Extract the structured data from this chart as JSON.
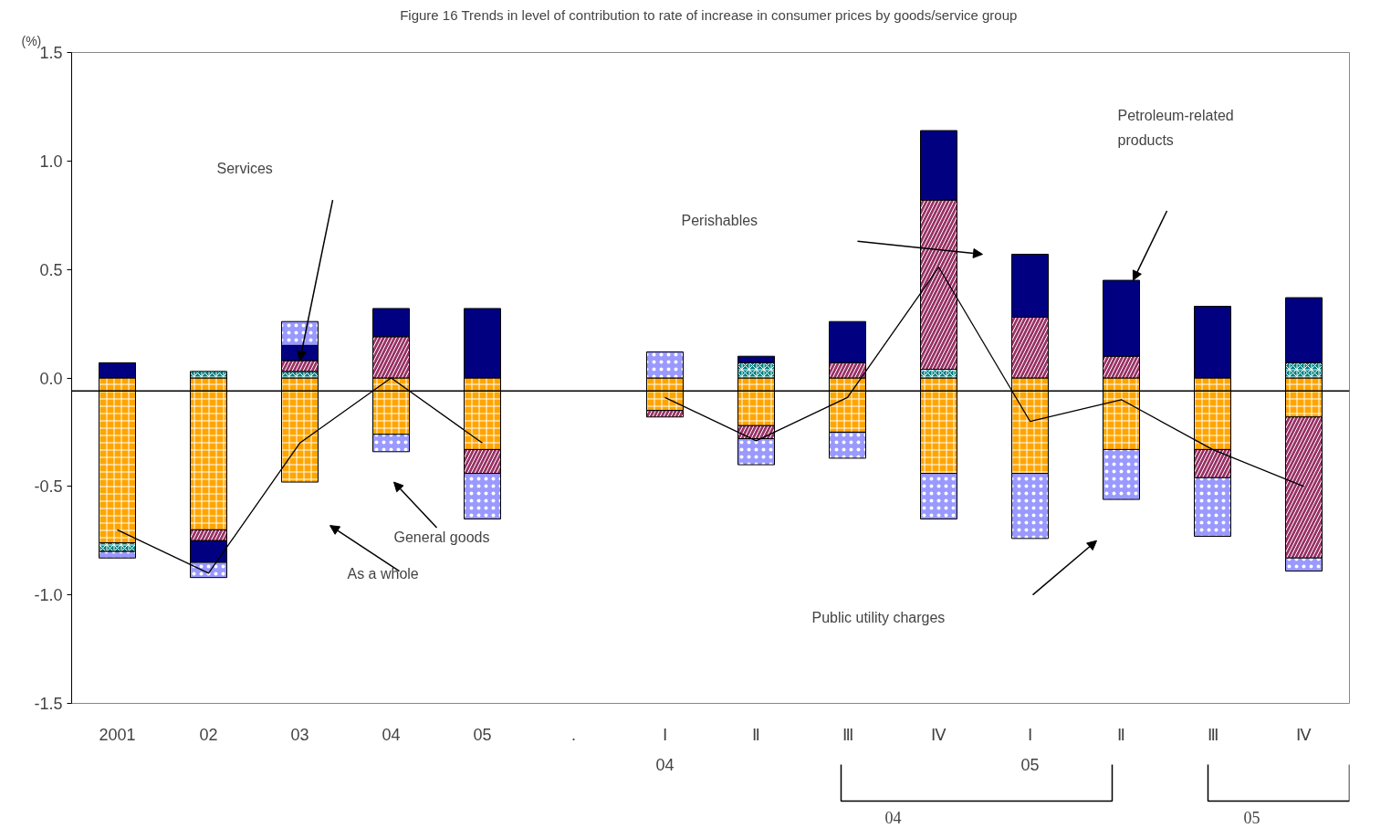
{
  "chart_data": {
    "type": "bar",
    "stacked": true,
    "title": "Figure 16  Trends in level of contribution to rate of increase in consumer prices by goods/service group",
    "ylabel": "(%)",
    "categories": [
      "2001",
      "02",
      "03",
      "04",
      "05",
      ".",
      "Ⅰ",
      "Ⅱ",
      "Ⅲ",
      "Ⅳ",
      "Ⅰ",
      "Ⅱ",
      "Ⅲ",
      "Ⅳ"
    ],
    "ylim": [
      -1.5,
      1.5
    ],
    "yticks": [
      {
        "value": -1.5,
        "label": "-1.5"
      },
      {
        "value": -1,
        "label": "-1.0"
      },
      {
        "value": -0.5,
        "label": "-0.5"
      },
      {
        "value": 0,
        "label": "0.0"
      },
      {
        "value": 0.5,
        "label": "0.5"
      },
      {
        "value": 1,
        "label": "1.0"
      },
      {
        "value": 1.5,
        "label": "1.5"
      }
    ],
    "grid": false,
    "series": [
      {
        "color": "#ffa500",
        "values": [
          -0.76,
          -0.7,
          -0.48,
          -0.26,
          -0.33,
          null,
          -0.15,
          -0.22,
          -0.25,
          -0.44,
          -0.44,
          -0.33,
          -0.33,
          -0.18
        ]
      },
      {
        "color": "#008080",
        "values": [
          -0.04,
          0.03,
          0.03,
          null,
          null,
          null,
          null,
          0.07,
          null,
          0.04,
          null,
          null,
          null,
          0.07
        ]
      },
      {
        "color": "#993366",
        "values": [
          null,
          -0.05,
          0.05,
          0.19,
          -0.11,
          null,
          -0.03,
          -0.06,
          0.07,
          0.78,
          0.28,
          0.1,
          -0.13,
          -0.65
        ]
      },
      {
        "color": "#000080",
        "values": [
          0.07,
          -0.1,
          0.07,
          0.13,
          0.32,
          null,
          null,
          0.03,
          0.19,
          0.32,
          0.29,
          0.35,
          0.33,
          0.3
        ]
      },
      {
        "color": "#9999ff",
        "values": [
          -0.03,
          -0.07,
          0.11,
          -0.08,
          -0.21,
          null,
          0.12,
          -0.12,
          -0.12,
          -0.21,
          -0.3,
          -0.23,
          -0.27,
          -0.06
        ]
      },
      {
        "type": "line",
        "color": "#000000",
        "values": [
          -0.7,
          -0.9,
          -0.3,
          0.0,
          -0.3,
          null,
          -0.09,
          -0.29,
          -0.09,
          0.51,
          -0.2,
          -0.1,
          -0.33,
          -0.5
        ]
      }
    ],
    "ref_lines": [
      {
        "axis": "y",
        "value": -0.06,
        "color": "#000000"
      }
    ],
    "annotations": [
      "Services",
      "Perishables",
      "Petroleum-related products",
      "General goods",
      "As a whole",
      "Public utility charges",
      "04",
      "05",
      "04",
      "05"
    ]
  }
}
